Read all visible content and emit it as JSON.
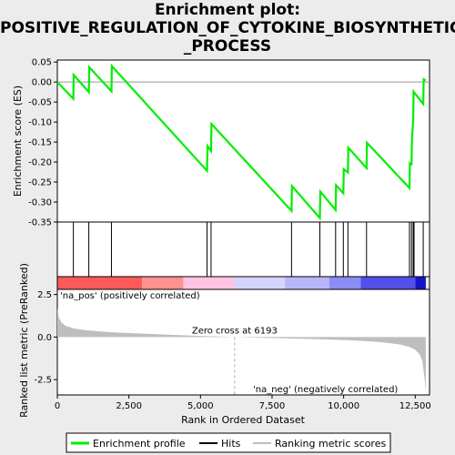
{
  "title_lines": [
    "Enrichment plot:",
    "POSITIVE_REGULATION_OF_CYTOKINE_BIOSYNTHETIC",
    "_PROCESS"
  ],
  "colors": {
    "enrichment_line": "#00ee00",
    "hits": "#000000",
    "ranking_fill": "#bebebe",
    "pos_label": "#cc0000",
    "neg_label": "#0000cc",
    "zero_cross_line": "#aaaaaa"
  },
  "chart_data": [
    {
      "type": "line",
      "name": "enrichment-profile",
      "ylabel": "Enrichment score (ES)",
      "xlim": [
        0,
        13000
      ],
      "ylim": [
        -0.35,
        0.055
      ],
      "yticks": [
        0.05,
        0.0,
        -0.05,
        -0.1,
        -0.15,
        -0.2,
        -0.25,
        -0.3,
        -0.35
      ],
      "ytick_labels": [
        "0.05",
        "0.00",
        "-0.05",
        "-0.10",
        "-0.15",
        "-0.20",
        "-0.25",
        "-0.30",
        "-0.35"
      ],
      "x": [
        0,
        560,
        570,
        1100,
        1115,
        1890,
        1905,
        5230,
        5245,
        5370,
        5385,
        8180,
        8195,
        9170,
        9185,
        9720,
        9735,
        9990,
        10005,
        10150,
        10165,
        10800,
        10815,
        12300,
        12315,
        12370,
        12385,
        12430,
        12445,
        12780,
        12795,
        12870
      ],
      "y": [
        0.0,
        -0.042,
        0.018,
        -0.025,
        0.037,
        -0.023,
        0.04,
        -0.222,
        -0.16,
        -0.172,
        -0.105,
        -0.322,
        -0.26,
        -0.34,
        -0.274,
        -0.32,
        -0.258,
        -0.278,
        -0.218,
        -0.226,
        -0.164,
        -0.215,
        -0.152,
        -0.265,
        -0.203,
        -0.205,
        -0.145,
        -0.092,
        -0.024,
        -0.055,
        0.007,
        0.004
      ]
    },
    {
      "type": "hits",
      "name": "hits",
      "positions": [
        560,
        1100,
        1890,
        5230,
        5370,
        8180,
        9170,
        9720,
        9990,
        10150,
        10800,
        12300,
        12370,
        12430,
        12460,
        12780
      ]
    },
    {
      "type": "heatmap",
      "name": "rank-color-bar",
      "segments": [
        {
          "from": 0,
          "to": 2960,
          "color": "#ff5a5a"
        },
        {
          "from": 2960,
          "to": 4400,
          "color": "#ff9191"
        },
        {
          "from": 4400,
          "to": 6193,
          "color": "#ffc4e4"
        },
        {
          "from": 6193,
          "to": 7950,
          "color": "#d4d4ff"
        },
        {
          "from": 7950,
          "to": 9500,
          "color": "#b8b8f8"
        },
        {
          "from": 9500,
          "to": 10600,
          "color": "#8c8cf5"
        },
        {
          "from": 10600,
          "to": 12500,
          "color": "#5050e8"
        },
        {
          "from": 12500,
          "to": 12870,
          "color": "#1515c8"
        }
      ]
    },
    {
      "type": "area",
      "name": "ranked-list-metric",
      "xlabel": "Rank in Ordered Dataset",
      "ylabel": "Ranked list metric (PreRanked)",
      "xlim": [
        0,
        13000
      ],
      "ylim": [
        -3.4,
        2.8
      ],
      "yticks": [
        2.5,
        0.0,
        -2.5
      ],
      "ytick_labels": [
        "2.5",
        "0.0",
        "-2.5"
      ],
      "xticks": [
        0,
        2500,
        5000,
        7500,
        10000,
        12500
      ],
      "xtick_labels": [
        "0",
        "2,500",
        "5,000",
        "7,500",
        "10,000",
        "12,500"
      ],
      "x": [
        0,
        50,
        150,
        300,
        600,
        1000,
        1500,
        2000,
        3000,
        4000,
        5000,
        6193,
        7000,
        8000,
        9000,
        10000,
        11000,
        11500,
        12000,
        12300,
        12500,
        12650,
        12750,
        12820,
        12870
      ],
      "y": [
        1.7,
        1.15,
        0.85,
        0.65,
        0.5,
        0.4,
        0.33,
        0.27,
        0.2,
        0.13,
        0.07,
        0.0,
        -0.04,
        -0.08,
        -0.12,
        -0.17,
        -0.26,
        -0.33,
        -0.45,
        -0.58,
        -0.75,
        -1.0,
        -1.4,
        -2.3,
        -3.2
      ],
      "zero_cross_label": "Zero cross at 6193",
      "zero_cross": 6193,
      "pos_label": "'na_pos' (positively correlated)",
      "neg_label": "'na_neg' (negatively correlated)"
    }
  ],
  "legend": {
    "items": [
      {
        "label": "Enrichment profile"
      },
      {
        "label": "Hits"
      },
      {
        "label": "Ranking metric scores"
      }
    ]
  }
}
